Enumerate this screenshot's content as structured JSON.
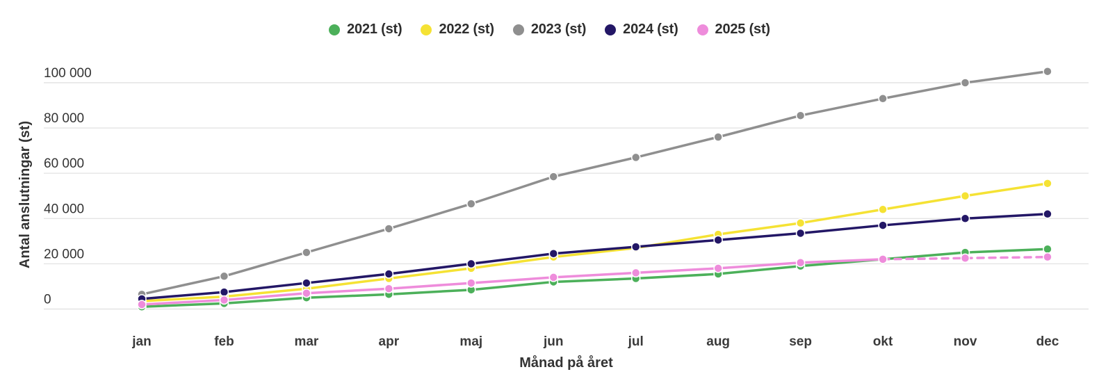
{
  "chart_data": {
    "type": "line",
    "xlabel": "Månad på året",
    "ylabel": "Antal anslutningar (st)",
    "categories": [
      "jan",
      "feb",
      "mar",
      "apr",
      "maj",
      "jun",
      "jul",
      "aug",
      "sep",
      "okt",
      "nov",
      "dec"
    ],
    "y_ticks": [
      {
        "value": 0,
        "label": "0"
      },
      {
        "value": 20000,
        "label": "20 000"
      },
      {
        "value": 40000,
        "label": "40 000"
      },
      {
        "value": 60000,
        "label": "60 000"
      },
      {
        "value": 80000,
        "label": "80 000"
      },
      {
        "value": 100000,
        "label": "100 000"
      }
    ],
    "ylim": [
      0,
      110000
    ],
    "grid": "horizontal-only",
    "legend_position": "top-center",
    "background": "#ffffff",
    "gridline_color": "#e4e4e4",
    "series": [
      {
        "name": "2021 (st)",
        "color": "#4cb05a",
        "style": "solid",
        "values": [
          1000,
          2500,
          5000,
          6500,
          8500,
          12000,
          13500,
          15500,
          19000,
          22000,
          25000,
          26500
        ]
      },
      {
        "name": "2022 (st)",
        "color": "#f5e234",
        "style": "solid",
        "values": [
          3500,
          5500,
          9000,
          13500,
          18000,
          23000,
          27000,
          33000,
          38000,
          44000,
          50000,
          55500
        ]
      },
      {
        "name": "2023 (st)",
        "color": "#8f8f8f",
        "style": "solid",
        "values": [
          6500,
          14500,
          25000,
          35500,
          46500,
          58500,
          67000,
          76000,
          85500,
          93000,
          100000,
          105000
        ]
      },
      {
        "name": "2024 (st)",
        "color": "#231766",
        "style": "solid",
        "values": [
          4500,
          7500,
          11500,
          15500,
          20000,
          24500,
          27500,
          30500,
          33500,
          37000,
          40000,
          42000
        ]
      },
      {
        "name": "2025 (st)",
        "color": "#ee8cdb",
        "style": "solid-then-dashed",
        "dashed_from_index": 9,
        "values": [
          2000,
          4000,
          7000,
          9000,
          11500,
          14000,
          16000,
          18000,
          20500,
          22000,
          22500,
          23000
        ]
      }
    ]
  }
}
